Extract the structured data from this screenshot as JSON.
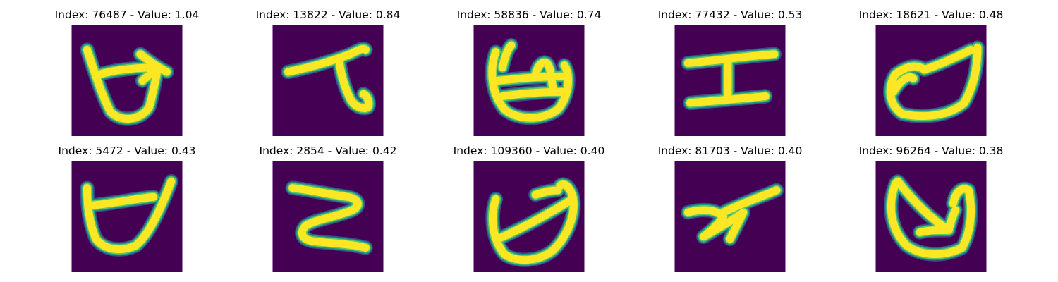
{
  "colors": {
    "background": "#440154",
    "stroke_core": "#fde725",
    "stroke_mid": "#5ec962",
    "stroke_edge": "#21918c",
    "stroke_outer": "#3b528b"
  },
  "panels": [
    {
      "title": "Index: 76487 - Value: 1.04"
    },
    {
      "title": "Index: 13822 - Value: 0.84"
    },
    {
      "title": "Index: 58836 - Value: 0.74"
    },
    {
      "title": "Index: 77432 - Value: 0.53"
    },
    {
      "title": "Index: 18621 - Value: 0.48"
    },
    {
      "title": "Index: 5472 - Value: 0.43"
    },
    {
      "title": "Index: 2854 - Value: 0.42"
    },
    {
      "title": "Index: 109360 - Value: 0.40"
    },
    {
      "title": "Index: 81703 - Value: 0.40"
    },
    {
      "title": "Index: 96264 - Value: 0.38"
    }
  ]
}
